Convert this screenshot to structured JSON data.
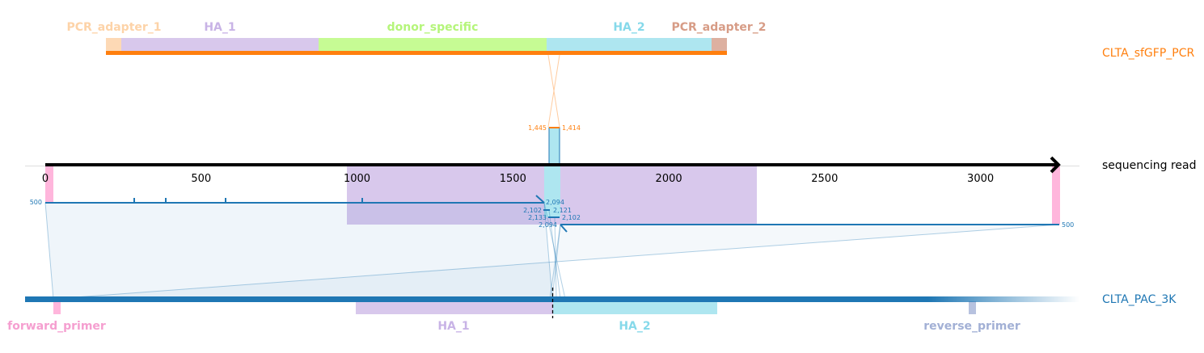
{
  "colors": {
    "pcr": "#ff7f0e",
    "read": "#000000",
    "ref": "#1f77b4",
    "pcr_adapter_1": "#fdd9b5",
    "pcr_adapter_2": "#ddb0a0",
    "ha_1": "#d8c8ec",
    "ha_2": "#aee6f0",
    "donor_specific": "#c6fb94",
    "forward_primer": "#ffb6dc",
    "reverse_primer": "#b7c2df",
    "pcr_adapter_1_label": "#fdd3a8",
    "pcr_adapter_2_label": "#d79c86",
    "ha_1_label": "#c8b3e6",
    "ha_2_label": "#86d9ea",
    "donor_specific_label": "#b5f57a",
    "forward_primer_label": "#f59fd0",
    "reverse_primer_label": "#a2b0d5"
  },
  "tracks": {
    "pcr_name": "CLTA_sfGFP_PCR",
    "read_name": "sequencing read",
    "ref_name": "CLTA_PAC_3K"
  },
  "pcr_features": [
    {
      "label": "PCR_adapter_1",
      "color_key": "pcr_adapter_1"
    },
    {
      "label": "HA_1",
      "color_key": "ha_1"
    },
    {
      "label": "donor_specific",
      "color_key": "donor_specific"
    },
    {
      "label": "HA_2",
      "color_key": "ha_2"
    },
    {
      "label": "PCR_adapter_2",
      "color_key": "pcr_adapter_2"
    }
  ],
  "ref_features": [
    {
      "label": "forward_primer",
      "color_key": "forward_primer"
    },
    {
      "label": "HA_1",
      "color_key": "ha_1"
    },
    {
      "label": "HA_2",
      "color_key": "ha_2"
    },
    {
      "label": "reverse_primer",
      "color_key": "reverse_primer"
    }
  ],
  "read_axis": {
    "ticks": [
      "0",
      "500",
      "1000",
      "1500",
      "2000",
      "2500",
      "3000"
    ],
    "tick_values": [
      0,
      500,
      1000,
      1500,
      2000,
      2500,
      3000
    ],
    "max": 3250
  },
  "alignment_labels": {
    "pcr_left": "1,445",
    "pcr_right": "1,414",
    "left_start": "500",
    "left_end": "2,094",
    "left_mid_a": "2,102",
    "left_mid_b": "2,133",
    "right_mid_a": "2,121",
    "right_mid_b": "2,102",
    "right_end": "2,094",
    "right_start": "500"
  }
}
